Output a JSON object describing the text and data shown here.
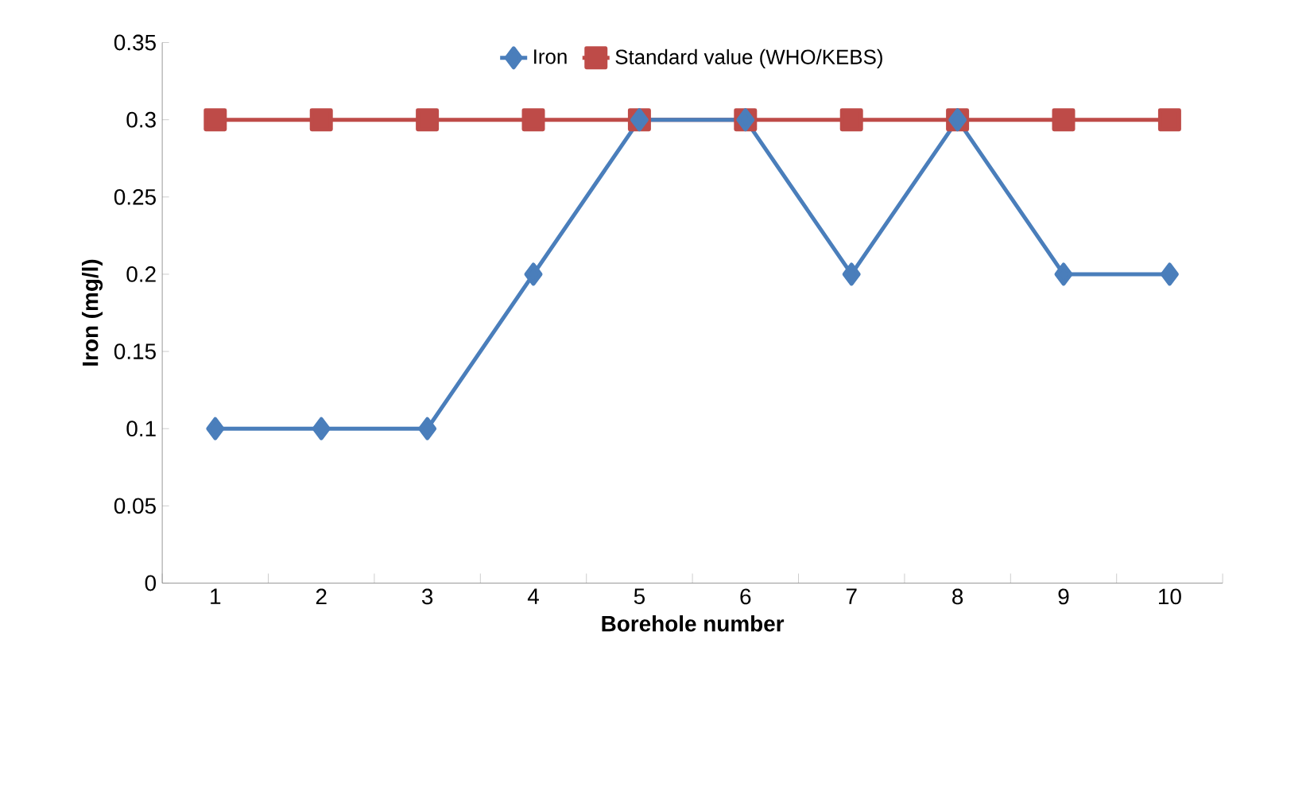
{
  "chart_data": {
    "type": "line",
    "xlabel": "Borehole number",
    "ylabel": "Iron (mg/l)",
    "categories": [
      "1",
      "2",
      "3",
      "4",
      "5",
      "6",
      "7",
      "8",
      "9",
      "10"
    ],
    "series": [
      {
        "name": "Iron",
        "color": "#4a7ebb",
        "marker": "diamond",
        "values": [
          0.1,
          0.1,
          0.1,
          0.2,
          0.3,
          0.3,
          0.2,
          0.3,
          0.2,
          0.2
        ]
      },
      {
        "name": "Standard value (WHO/KEBS)",
        "color": "#be4b48",
        "marker": "square",
        "values": [
          0.3,
          0.3,
          0.3,
          0.3,
          0.3,
          0.3,
          0.3,
          0.3,
          0.3,
          0.3
        ]
      }
    ],
    "ylim": [
      0,
      0.35
    ],
    "yticks": [
      0,
      0.05,
      0.1,
      0.15,
      0.2,
      0.25,
      0.3,
      0.35
    ],
    "grid": false,
    "legend": "top",
    "line_style": "solid"
  }
}
